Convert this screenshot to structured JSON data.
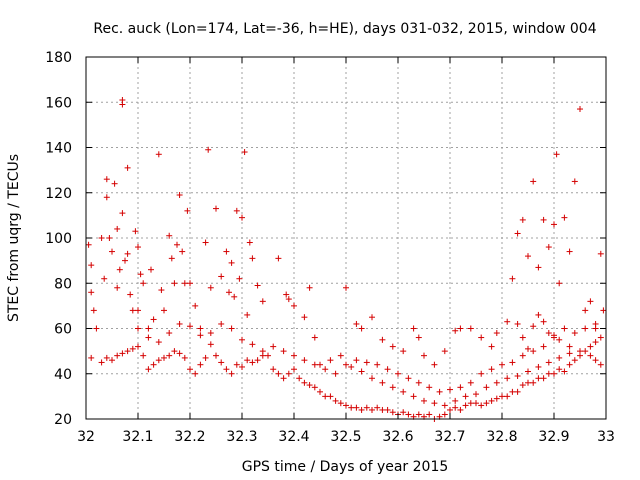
{
  "chart_data": {
    "type": "scatter",
    "title": "Rec. auck (Lon=174, Lat=-36, h=HE), days 031-032, 2015, window 004",
    "xlabel": "GPS time / Days of year 2015",
    "ylabel": "STEC from uqrg / TECUs",
    "xlim": [
      32,
      33
    ],
    "ylim": [
      20,
      180
    ],
    "xticks": [
      "32",
      "32.1",
      "32.2",
      "32.3",
      "32.4",
      "32.5",
      "32.6",
      "32.7",
      "32.8",
      "32.9",
      "33"
    ],
    "yticks": [
      "20",
      "40",
      "60",
      "80",
      "100",
      "120",
      "140",
      "160",
      "180"
    ],
    "grid": true,
    "marker": "+",
    "color": "#d40000",
    "points": [
      [
        32.005,
        97
      ],
      [
        32.01,
        88
      ],
      [
        32.01,
        76
      ],
      [
        32.015,
        68
      ],
      [
        32.02,
        60
      ],
      [
        32.01,
        47
      ],
      [
        32.03,
        100
      ],
      [
        32.035,
        82
      ],
      [
        32.04,
        126
      ],
      [
        32.04,
        118
      ],
      [
        32.045,
        100
      ],
      [
        32.05,
        94
      ],
      [
        32.055,
        124
      ],
      [
        32.06,
        104
      ],
      [
        32.06,
        78
      ],
      [
        32.065,
        86
      ],
      [
        32.07,
        111
      ],
      [
        32.07,
        159
      ],
      [
        32.07,
        161
      ],
      [
        32.075,
        90
      ],
      [
        32.08,
        131
      ],
      [
        32.08,
        93
      ],
      [
        32.085,
        75
      ],
      [
        32.09,
        68
      ],
      [
        32.095,
        103
      ],
      [
        32.1,
        96
      ],
      [
        32.1,
        68
      ],
      [
        32.105,
        84
      ],
      [
        32.11,
        80
      ],
      [
        32.12,
        60
      ],
      [
        32.125,
        86
      ],
      [
        32.13,
        64
      ],
      [
        32.14,
        137
      ],
      [
        32.145,
        77
      ],
      [
        32.15,
        68
      ],
      [
        32.16,
        101
      ],
      [
        32.165,
        91
      ],
      [
        32.17,
        80
      ],
      [
        32.175,
        97
      ],
      [
        32.18,
        119
      ],
      [
        32.185,
        94
      ],
      [
        32.19,
        80
      ],
      [
        32.195,
        112
      ],
      [
        32.2,
        80
      ],
      [
        32.21,
        70
      ],
      [
        32.22,
        57
      ],
      [
        32.23,
        98
      ],
      [
        32.235,
        139
      ],
      [
        32.24,
        78
      ],
      [
        32.25,
        113
      ],
      [
        32.26,
        83
      ],
      [
        32.27,
        94
      ],
      [
        32.275,
        76
      ],
      [
        32.28,
        89
      ],
      [
        32.285,
        74
      ],
      [
        32.29,
        112
      ],
      [
        32.295,
        82
      ],
      [
        32.3,
        109
      ],
      [
        32.305,
        138
      ],
      [
        32.31,
        66
      ],
      [
        32.315,
        98
      ],
      [
        32.32,
        91
      ],
      [
        32.33,
        79
      ],
      [
        32.34,
        72
      ],
      [
        32.37,
        91
      ],
      [
        32.385,
        75
      ],
      [
        32.39,
        73
      ],
      [
        32.4,
        70
      ],
      [
        32.42,
        65
      ],
      [
        32.43,
        78
      ],
      [
        32.44,
        56
      ],
      [
        32.5,
        78
      ],
      [
        32.03,
        45
      ],
      [
        32.04,
        47
      ],
      [
        32.05,
        46
      ],
      [
        32.06,
        48
      ],
      [
        32.07,
        49
      ],
      [
        32.08,
        50
      ],
      [
        32.09,
        51
      ],
      [
        32.1,
        52
      ],
      [
        32.11,
        48
      ],
      [
        32.12,
        42
      ],
      [
        32.13,
        44
      ],
      [
        32.14,
        46
      ],
      [
        32.15,
        47
      ],
      [
        32.16,
        48
      ],
      [
        32.17,
        50
      ],
      [
        32.18,
        49
      ],
      [
        32.19,
        47
      ],
      [
        32.2,
        42
      ],
      [
        32.21,
        40
      ],
      [
        32.22,
        44
      ],
      [
        32.23,
        47
      ],
      [
        32.24,
        53
      ],
      [
        32.25,
        48
      ],
      [
        32.26,
        45
      ],
      [
        32.27,
        42
      ],
      [
        32.28,
        40
      ],
      [
        32.29,
        44
      ],
      [
        32.3,
        43
      ],
      [
        32.31,
        46
      ],
      [
        32.32,
        45
      ],
      [
        32.33,
        46
      ],
      [
        32.34,
        48
      ],
      [
        32.35,
        48
      ],
      [
        32.36,
        42
      ],
      [
        32.37,
        40
      ],
      [
        32.38,
        38
      ],
      [
        32.39,
        40
      ],
      [
        32.4,
        42
      ],
      [
        32.41,
        38
      ],
      [
        32.42,
        36
      ],
      [
        32.43,
        35
      ],
      [
        32.44,
        34
      ],
      [
        32.45,
        32
      ],
      [
        32.46,
        30
      ],
      [
        32.47,
        30
      ],
      [
        32.48,
        28
      ],
      [
        32.49,
        27
      ],
      [
        32.5,
        26
      ],
      [
        32.51,
        25
      ],
      [
        32.52,
        25
      ],
      [
        32.53,
        24
      ],
      [
        32.54,
        25
      ],
      [
        32.55,
        24
      ],
      [
        32.56,
        25
      ],
      [
        32.57,
        24
      ],
      [
        32.58,
        24
      ],
      [
        32.59,
        23
      ],
      [
        32.6,
        22
      ],
      [
        32.61,
        23
      ],
      [
        32.62,
        22
      ],
      [
        32.63,
        21
      ],
      [
        32.64,
        22
      ],
      [
        32.65,
        21
      ],
      [
        32.66,
        22
      ],
      [
        32.67,
        20
      ],
      [
        32.68,
        21
      ],
      [
        32.69,
        22
      ],
      [
        32.7,
        24
      ],
      [
        32.71,
        25
      ],
      [
        32.72,
        24
      ],
      [
        32.73,
        26
      ],
      [
        32.74,
        27
      ],
      [
        32.75,
        27
      ],
      [
        32.76,
        26
      ],
      [
        32.77,
        27
      ],
      [
        32.78,
        28
      ],
      [
        32.79,
        29
      ],
      [
        32.8,
        30
      ],
      [
        32.81,
        30
      ],
      [
        32.82,
        32
      ],
      [
        32.83,
        32
      ],
      [
        32.84,
        35
      ],
      [
        32.85,
        36
      ],
      [
        32.86,
        36
      ],
      [
        32.87,
        38
      ],
      [
        32.88,
        38
      ],
      [
        32.89,
        40
      ],
      [
        32.9,
        40
      ],
      [
        32.91,
        42
      ],
      [
        32.92,
        41
      ],
      [
        32.93,
        44
      ],
      [
        32.94,
        46
      ],
      [
        32.95,
        48
      ],
      [
        32.96,
        50
      ],
      [
        32.97,
        52
      ],
      [
        32.98,
        54
      ],
      [
        32.99,
        56
      ],
      [
        32.1,
        60
      ],
      [
        32.12,
        56
      ],
      [
        32.14,
        54
      ],
      [
        32.16,
        58
      ],
      [
        32.18,
        62
      ],
      [
        32.2,
        61
      ],
      [
        32.22,
        60
      ],
      [
        32.24,
        58
      ],
      [
        32.26,
        62
      ],
      [
        32.28,
        60
      ],
      [
        32.3,
        55
      ],
      [
        32.32,
        53
      ],
      [
        32.34,
        50
      ],
      [
        32.36,
        52
      ],
      [
        32.38,
        50
      ],
      [
        32.4,
        48
      ],
      [
        32.42,
        46
      ],
      [
        32.44,
        44
      ],
      [
        32.46,
        42
      ],
      [
        32.48,
        40
      ],
      [
        32.5,
        44
      ],
      [
        32.52,
        46
      ],
      [
        32.54,
        45
      ],
      [
        32.56,
        44
      ],
      [
        32.58,
        42
      ],
      [
        32.6,
        40
      ],
      [
        32.62,
        38
      ],
      [
        32.64,
        36
      ],
      [
        32.66,
        34
      ],
      [
        32.68,
        32
      ],
      [
        32.7,
        33
      ],
      [
        32.72,
        34
      ],
      [
        32.74,
        36
      ],
      [
        32.76,
        40
      ],
      [
        32.78,
        42
      ],
      [
        32.8,
        44
      ],
      [
        32.82,
        45
      ],
      [
        32.84,
        48
      ],
      [
        32.86,
        50
      ],
      [
        32.88,
        52
      ],
      [
        32.9,
        56
      ],
      [
        32.92,
        60
      ],
      [
        32.94,
        58
      ],
      [
        32.96,
        60
      ],
      [
        32.98,
        62
      ],
      [
        32.52,
        62
      ],
      [
        32.53,
        60
      ],
      [
        32.55,
        65
      ],
      [
        32.57,
        55
      ],
      [
        32.59,
        52
      ],
      [
        32.61,
        50
      ],
      [
        32.63,
        60
      ],
      [
        32.64,
        56
      ],
      [
        32.65,
        48
      ],
      [
        32.67,
        44
      ],
      [
        32.69,
        50
      ],
      [
        32.71,
        59
      ],
      [
        32.72,
        60
      ],
      [
        32.74,
        60
      ],
      [
        32.76,
        56
      ],
      [
        32.78,
        52
      ],
      [
        32.79,
        58
      ],
      [
        32.81,
        63
      ],
      [
        32.83,
        62
      ],
      [
        32.84,
        56
      ],
      [
        32.85,
        51
      ],
      [
        32.86,
        61
      ],
      [
        32.87,
        66
      ],
      [
        32.88,
        63
      ],
      [
        32.89,
        58
      ],
      [
        32.9,
        57
      ],
      [
        32.91,
        55
      ],
      [
        32.93,
        52
      ],
      [
        32.95,
        50
      ],
      [
        32.97,
        48
      ],
      [
        32.98,
        46
      ],
      [
        32.99,
        44
      ],
      [
        32.82,
        82
      ],
      [
        32.83,
        102
      ],
      [
        32.84,
        108
      ],
      [
        32.85,
        92
      ],
      [
        32.86,
        125
      ],
      [
        32.87,
        87
      ],
      [
        32.88,
        108
      ],
      [
        32.89,
        96
      ],
      [
        32.9,
        106
      ],
      [
        32.905,
        137
      ],
      [
        32.91,
        80
      ],
      [
        32.92,
        109
      ],
      [
        32.93,
        94
      ],
      [
        32.94,
        125
      ],
      [
        32.95,
        157
      ],
      [
        32.96,
        68
      ],
      [
        32.97,
        72
      ],
      [
        32.98,
        60
      ],
      [
        32.99,
        93
      ],
      [
        32.995,
        68
      ],
      [
        32.45,
        44
      ],
      [
        32.47,
        46
      ],
      [
        32.49,
        48
      ],
      [
        32.51,
        43
      ],
      [
        32.53,
        41
      ],
      [
        32.55,
        38
      ],
      [
        32.57,
        36
      ],
      [
        32.59,
        34
      ],
      [
        32.61,
        32
      ],
      [
        32.63,
        30
      ],
      [
        32.65,
        28
      ],
      [
        32.67,
        27
      ],
      [
        32.69,
        26
      ],
      [
        32.71,
        28
      ],
      [
        32.73,
        30
      ],
      [
        32.75,
        31
      ],
      [
        32.77,
        34
      ],
      [
        32.79,
        36
      ],
      [
        32.81,
        38
      ],
      [
        32.83,
        39
      ],
      [
        32.85,
        41
      ],
      [
        32.87,
        43
      ],
      [
        32.89,
        45
      ],
      [
        32.91,
        47
      ],
      [
        32.93,
        49
      ]
    ]
  }
}
